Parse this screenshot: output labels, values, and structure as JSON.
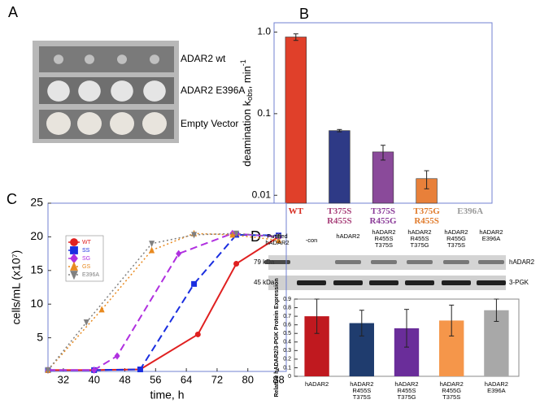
{
  "panel_labels": [
    "A",
    "B",
    "C",
    "D"
  ],
  "panel_a": {
    "rows": [
      "ADAR2 wt",
      "ADAR2 E396A",
      "Empty Vector"
    ]
  },
  "blot": {
    "lanes": [
      "Purified hADAR2",
      "-con",
      "hADAR2",
      "hADAR2 R455S T375S",
      "hADAR2 R455S T375G",
      "hADAR2 R455G T375S",
      "hADAR2 E396A"
    ],
    "markers": [
      "79 kDa",
      "45 kDa"
    ],
    "proteins": [
      "hADAR2",
      "3-PGK"
    ]
  },
  "chart_data": [
    {
      "type": "bar",
      "log_scale": true,
      "ylabel": [
        "deamination k",
        "obs",
        ", min",
        "-1"
      ],
      "categories": [
        "WT",
        "T375S R455S",
        "T375S R455G",
        "T375G R455S",
        "E396A"
      ],
      "values": [
        0.87,
        0.062,
        0.034,
        0.016,
        null
      ],
      "errors": [
        0.08,
        0.002,
        0.007,
        0.004,
        null
      ],
      "colors": [
        "#e0402a",
        "#2e3a86",
        "#8a4a9a",
        "#e8803a",
        "#999999"
      ],
      "label_colors": [
        "#d62a20",
        "#a8407a",
        "#8a3a98",
        "#e07a2a",
        "#9a9a9a"
      ],
      "ylim": [
        0.008,
        1.3
      ],
      "yticks": [
        {
          "value": 1,
          "label": "1.0"
        },
        0.1,
        0.01
      ]
    },
    {
      "type": "line",
      "xlabel": "time, h",
      "ylabel": "cells/mL (x10⁷)",
      "xlim": [
        28,
        90
      ],
      "xticks": [
        32,
        40,
        48,
        56,
        64,
        72,
        80,
        88
      ],
      "ylim": [
        0,
        25
      ],
      "yticks": [
        5,
        10,
        15,
        20,
        25
      ],
      "legend": "upper left",
      "series": [
        {
          "name": "WT",
          "color": "#e02020",
          "marker": "circle",
          "dash": "solid",
          "x": [
            28,
            40,
            52,
            67,
            77,
            88
          ],
          "values": [
            0.2,
            0.2,
            0.3,
            5.5,
            16,
            20
          ]
        },
        {
          "name": "SS",
          "color": "#1a2ee0",
          "marker": "square",
          "dash": "dashed",
          "x": [
            28,
            40,
            52,
            66,
            77,
            88
          ],
          "values": [
            0.2,
            0.2,
            0.3,
            13,
            20.3,
            20.2
          ]
        },
        {
          "name": "SG",
          "color": "#b030e0",
          "marker": "diamond",
          "dash": "dashed",
          "x": [
            28,
            40,
            46,
            62,
            76,
            88
          ],
          "values": [
            0.2,
            0.2,
            2.3,
            17.5,
            20.5,
            20
          ]
        },
        {
          "name": "GS",
          "color": "#e88a20",
          "marker": "triangle-up",
          "dash": "dotted",
          "x": [
            28,
            42,
            55,
            66,
            76,
            88
          ],
          "values": [
            0.2,
            9.2,
            18,
            20.5,
            20.3,
            19.5
          ]
        },
        {
          "name": "E396A",
          "color": "#808080",
          "marker": "triangle-down",
          "dash": "dotted",
          "x": [
            28,
            38,
            55,
            66,
            77,
            88
          ],
          "values": [
            0.2,
            7.3,
            19,
            20.3,
            20.5,
            20
          ]
        }
      ]
    },
    {
      "type": "bar",
      "log_scale": false,
      "ylabel": "Relative hADAR2/3-PGK Protein Expression",
      "categories": [
        "hADAR2",
        "hADAR2 R455S T375S",
        "hADAR2 R455S T375G",
        "hADAR2 R455G T375S",
        "hADAR2 E396A"
      ],
      "values": [
        0.7,
        0.62,
        0.56,
        0.65,
        0.77
      ],
      "errors": [
        0.2,
        0.15,
        0.22,
        0.18,
        0.13
      ],
      "colors": [
        "#c0191f",
        "#1f3c6e",
        "#6a2d9a",
        "#f5964a",
        "#a8a8a8"
      ],
      "ylim": [
        0,
        0.9
      ],
      "yticks": [
        0,
        0.1,
        0.2,
        0.3,
        0.4,
        0.5,
        0.6,
        0.7,
        0.8,
        0.9
      ]
    }
  ]
}
